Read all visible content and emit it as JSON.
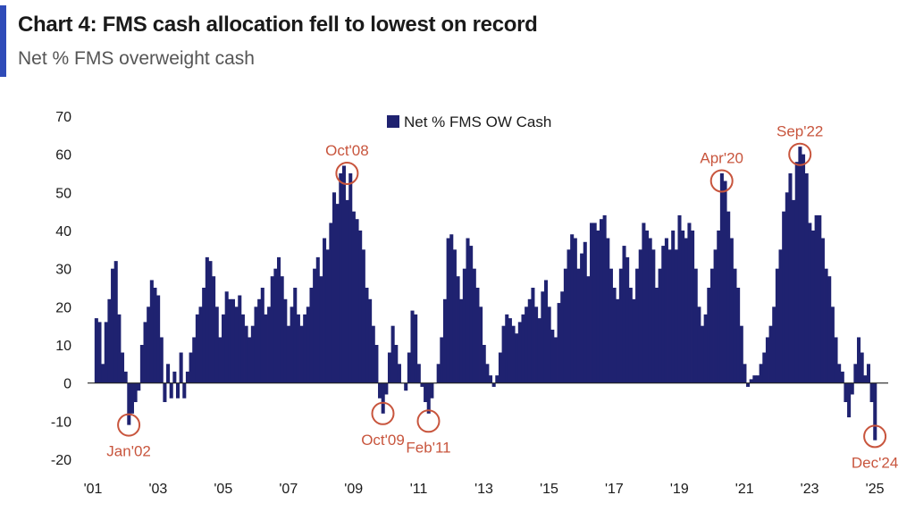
{
  "header": {
    "title": "Chart 4: FMS cash allocation fell to lowest on record",
    "subtitle": "Net % FMS overweight cash"
  },
  "colors": {
    "bar": "#1f2270",
    "annotation": "#c8553d",
    "accent": "#2f4bb8",
    "axis": "#222222"
  },
  "chart_data": {
    "type": "bar",
    "legend_position": "top-center",
    "grid": false,
    "ylim": [
      -20,
      70
    ],
    "yticks": [
      70,
      60,
      50,
      40,
      30,
      20,
      10,
      0,
      -10,
      -20
    ],
    "xlim": [
      2001.0,
      2025.3
    ],
    "xticks": [
      {
        "x": 2001,
        "label": "'01"
      },
      {
        "x": 2003,
        "label": "'03"
      },
      {
        "x": 2005,
        "label": "'05"
      },
      {
        "x": 2007,
        "label": "'07"
      },
      {
        "x": 2009,
        "label": "'09"
      },
      {
        "x": 2011,
        "label": "'11"
      },
      {
        "x": 2013,
        "label": "'13"
      },
      {
        "x": 2015,
        "label": "'15"
      },
      {
        "x": 2017,
        "label": "'17"
      },
      {
        "x": 2019,
        "label": "'19"
      },
      {
        "x": 2021,
        "label": "'21"
      },
      {
        "x": 2023,
        "label": "'23"
      },
      {
        "x": 2025,
        "label": "'25"
      }
    ],
    "series": [
      {
        "name": "Net % FMS OW Cash",
        "points": [
          [
            2001.1,
            17
          ],
          [
            2001.2,
            16
          ],
          [
            2001.3,
            5
          ],
          [
            2001.4,
            16
          ],
          [
            2001.5,
            22
          ],
          [
            2001.6,
            30
          ],
          [
            2001.7,
            32
          ],
          [
            2001.8,
            18
          ],
          [
            2001.9,
            8
          ],
          [
            2002.0,
            3
          ],
          [
            2002.1,
            -11
          ],
          [
            2002.2,
            -8
          ],
          [
            2002.3,
            -5
          ],
          [
            2002.4,
            -2
          ],
          [
            2002.5,
            10
          ],
          [
            2002.6,
            16
          ],
          [
            2002.7,
            20
          ],
          [
            2002.8,
            27
          ],
          [
            2002.9,
            25
          ],
          [
            2003.0,
            23
          ],
          [
            2003.1,
            12
          ],
          [
            2003.2,
            -5
          ],
          [
            2003.3,
            5
          ],
          [
            2003.4,
            -4
          ],
          [
            2003.5,
            3
          ],
          [
            2003.6,
            -4
          ],
          [
            2003.7,
            8
          ],
          [
            2003.8,
            -4
          ],
          [
            2003.9,
            3
          ],
          [
            2004.0,
            8
          ],
          [
            2004.1,
            12
          ],
          [
            2004.2,
            18
          ],
          [
            2004.3,
            20
          ],
          [
            2004.4,
            25
          ],
          [
            2004.5,
            33
          ],
          [
            2004.6,
            32
          ],
          [
            2004.7,
            28
          ],
          [
            2004.8,
            20
          ],
          [
            2004.9,
            12
          ],
          [
            2005.0,
            18
          ],
          [
            2005.1,
            24
          ],
          [
            2005.2,
            22
          ],
          [
            2005.3,
            22
          ],
          [
            2005.4,
            20
          ],
          [
            2005.5,
            23
          ],
          [
            2005.6,
            18
          ],
          [
            2005.7,
            15
          ],
          [
            2005.8,
            12
          ],
          [
            2005.9,
            15
          ],
          [
            2006.0,
            20
          ],
          [
            2006.1,
            22
          ],
          [
            2006.2,
            25
          ],
          [
            2006.3,
            18
          ],
          [
            2006.4,
            20
          ],
          [
            2006.5,
            28
          ],
          [
            2006.6,
            30
          ],
          [
            2006.7,
            33
          ],
          [
            2006.8,
            28
          ],
          [
            2006.9,
            22
          ],
          [
            2007.0,
            15
          ],
          [
            2007.1,
            20
          ],
          [
            2007.2,
            25
          ],
          [
            2007.3,
            18
          ],
          [
            2007.4,
            15
          ],
          [
            2007.5,
            18
          ],
          [
            2007.6,
            20
          ],
          [
            2007.7,
            25
          ],
          [
            2007.8,
            30
          ],
          [
            2007.9,
            33
          ],
          [
            2008.0,
            28
          ],
          [
            2008.1,
            38
          ],
          [
            2008.2,
            35
          ],
          [
            2008.3,
            42
          ],
          [
            2008.4,
            50
          ],
          [
            2008.5,
            47
          ],
          [
            2008.6,
            55
          ],
          [
            2008.7,
            57
          ],
          [
            2008.8,
            48
          ],
          [
            2008.9,
            55
          ],
          [
            2009.0,
            45
          ],
          [
            2009.1,
            43
          ],
          [
            2009.2,
            40
          ],
          [
            2009.3,
            35
          ],
          [
            2009.4,
            25
          ],
          [
            2009.5,
            22
          ],
          [
            2009.6,
            15
          ],
          [
            2009.7,
            10
          ],
          [
            2009.8,
            -4
          ],
          [
            2009.9,
            -8
          ],
          [
            2010.0,
            -3
          ],
          [
            2010.1,
            8
          ],
          [
            2010.2,
            15
          ],
          [
            2010.3,
            10
          ],
          [
            2010.4,
            5
          ],
          [
            2010.5,
            0
          ],
          [
            2010.6,
            -2
          ],
          [
            2010.7,
            8
          ],
          [
            2010.8,
            19
          ],
          [
            2010.9,
            18
          ],
          [
            2011.0,
            5
          ],
          [
            2011.1,
            -1
          ],
          [
            2011.2,
            -5
          ],
          [
            2011.3,
            -8
          ],
          [
            2011.4,
            -4
          ],
          [
            2011.5,
            0
          ],
          [
            2011.6,
            5
          ],
          [
            2011.7,
            12
          ],
          [
            2011.8,
            22
          ],
          [
            2011.9,
            38
          ],
          [
            2012.0,
            39
          ],
          [
            2012.1,
            35
          ],
          [
            2012.2,
            28
          ],
          [
            2012.3,
            22
          ],
          [
            2012.4,
            30
          ],
          [
            2012.5,
            38
          ],
          [
            2012.6,
            36
          ],
          [
            2012.7,
            30
          ],
          [
            2012.8,
            25
          ],
          [
            2012.9,
            20
          ],
          [
            2013.0,
            10
          ],
          [
            2013.1,
            5
          ],
          [
            2013.2,
            2
          ],
          [
            2013.3,
            -1
          ],
          [
            2013.4,
            2
          ],
          [
            2013.5,
            8
          ],
          [
            2013.6,
            15
          ],
          [
            2013.7,
            18
          ],
          [
            2013.8,
            17
          ],
          [
            2013.9,
            15
          ],
          [
            2014.0,
            13
          ],
          [
            2014.1,
            16
          ],
          [
            2014.2,
            18
          ],
          [
            2014.3,
            20
          ],
          [
            2014.4,
            22
          ],
          [
            2014.5,
            25
          ],
          [
            2014.6,
            20
          ],
          [
            2014.7,
            17
          ],
          [
            2014.8,
            24
          ],
          [
            2014.9,
            27
          ],
          [
            2015.0,
            20
          ],
          [
            2015.1,
            14
          ],
          [
            2015.2,
            12
          ],
          [
            2015.3,
            21
          ],
          [
            2015.4,
            24
          ],
          [
            2015.5,
            30
          ],
          [
            2015.6,
            35
          ],
          [
            2015.7,
            39
          ],
          [
            2015.8,
            38
          ],
          [
            2015.9,
            30
          ],
          [
            2016.0,
            34
          ],
          [
            2016.1,
            37
          ],
          [
            2016.2,
            28
          ],
          [
            2016.3,
            42
          ],
          [
            2016.4,
            42
          ],
          [
            2016.5,
            40
          ],
          [
            2016.6,
            43
          ],
          [
            2016.7,
            44
          ],
          [
            2016.8,
            38
          ],
          [
            2016.9,
            30
          ],
          [
            2017.0,
            25
          ],
          [
            2017.1,
            22
          ],
          [
            2017.2,
            30
          ],
          [
            2017.3,
            36
          ],
          [
            2017.4,
            33
          ],
          [
            2017.5,
            25
          ],
          [
            2017.6,
            22
          ],
          [
            2017.7,
            30
          ],
          [
            2017.8,
            35
          ],
          [
            2017.9,
            42
          ],
          [
            2018.0,
            40
          ],
          [
            2018.1,
            38
          ],
          [
            2018.2,
            35
          ],
          [
            2018.3,
            25
          ],
          [
            2018.4,
            30
          ],
          [
            2018.5,
            36
          ],
          [
            2018.6,
            38
          ],
          [
            2018.7,
            35
          ],
          [
            2018.8,
            40
          ],
          [
            2018.9,
            35
          ],
          [
            2019.0,
            44
          ],
          [
            2019.1,
            40
          ],
          [
            2019.2,
            38
          ],
          [
            2019.3,
            42
          ],
          [
            2019.4,
            40
          ],
          [
            2019.5,
            30
          ],
          [
            2019.6,
            20
          ],
          [
            2019.7,
            15
          ],
          [
            2019.8,
            18
          ],
          [
            2019.9,
            25
          ],
          [
            2020.0,
            30
          ],
          [
            2020.1,
            35
          ],
          [
            2020.2,
            40
          ],
          [
            2020.3,
            55
          ],
          [
            2020.4,
            53
          ],
          [
            2020.5,
            45
          ],
          [
            2020.6,
            38
          ],
          [
            2020.7,
            30
          ],
          [
            2020.8,
            25
          ],
          [
            2020.9,
            15
          ],
          [
            2021.0,
            5
          ],
          [
            2021.1,
            -1
          ],
          [
            2021.2,
            1
          ],
          [
            2021.3,
            2
          ],
          [
            2021.4,
            2
          ],
          [
            2021.5,
            5
          ],
          [
            2021.6,
            8
          ],
          [
            2021.7,
            12
          ],
          [
            2021.8,
            15
          ],
          [
            2021.9,
            20
          ],
          [
            2022.0,
            30
          ],
          [
            2022.1,
            35
          ],
          [
            2022.2,
            45
          ],
          [
            2022.3,
            50
          ],
          [
            2022.4,
            55
          ],
          [
            2022.5,
            48
          ],
          [
            2022.6,
            58
          ],
          [
            2022.7,
            62
          ],
          [
            2022.8,
            60
          ],
          [
            2022.9,
            55
          ],
          [
            2023.0,
            42
          ],
          [
            2023.1,
            40
          ],
          [
            2023.2,
            44
          ],
          [
            2023.3,
            44
          ],
          [
            2023.4,
            38
          ],
          [
            2023.5,
            30
          ],
          [
            2023.6,
            28
          ],
          [
            2023.7,
            20
          ],
          [
            2023.8,
            12
          ],
          [
            2023.9,
            5
          ],
          [
            2024.0,
            3
          ],
          [
            2024.1,
            -5
          ],
          [
            2024.2,
            -9
          ],
          [
            2024.3,
            -3
          ],
          [
            2024.4,
            5
          ],
          [
            2024.5,
            12
          ],
          [
            2024.6,
            8
          ],
          [
            2024.7,
            2
          ],
          [
            2024.8,
            5
          ],
          [
            2024.9,
            -5
          ],
          [
            2025.0,
            -15
          ]
        ]
      }
    ],
    "annotations": [
      {
        "label": "Jan'02",
        "x": 2002.1,
        "y": -11,
        "label_side": "below"
      },
      {
        "label": "Oct'08",
        "x": 2008.8,
        "y": 55,
        "label_side": "above"
      },
      {
        "label": "Oct'09",
        "x": 2009.9,
        "y": -8,
        "label_side": "below"
      },
      {
        "label": "Feb'11",
        "x": 2011.3,
        "y": -10,
        "label_side": "below"
      },
      {
        "label": "Apr'20",
        "x": 2020.3,
        "y": 53,
        "label_side": "above"
      },
      {
        "label": "Sep'22",
        "x": 2022.7,
        "y": 60,
        "label_side": "above"
      },
      {
        "label": "Dec'24",
        "x": 2025.0,
        "y": -14,
        "label_side": "below"
      }
    ]
  }
}
